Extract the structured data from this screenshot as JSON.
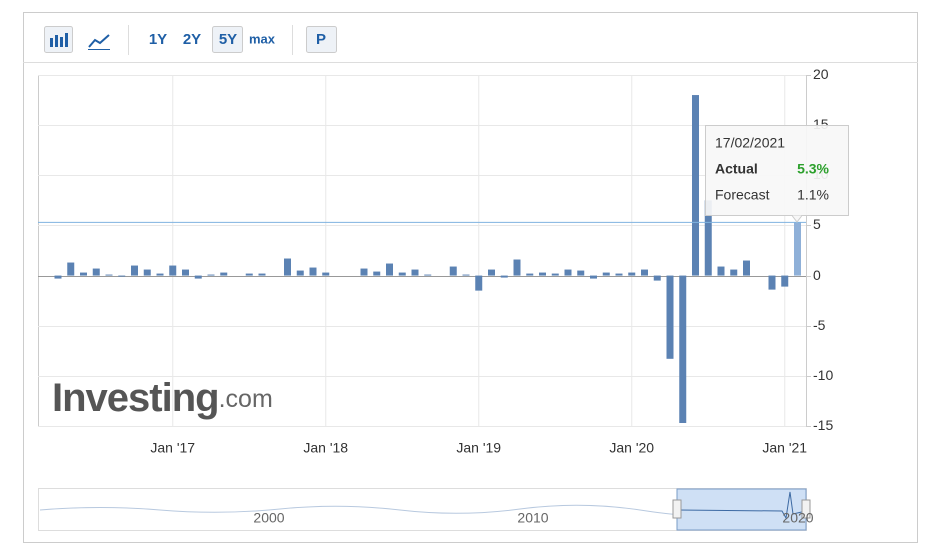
{
  "toolbar": {
    "ranges": [
      "1Y",
      "2Y",
      "5Y",
      "max"
    ],
    "selected_range": 2,
    "print": "P"
  },
  "chart_data": {
    "type": "bar",
    "categories": [
      null,
      null,
      null,
      null,
      null,
      null,
      null,
      null,
      null,
      "Jan '17",
      null,
      null,
      null,
      null,
      null,
      null,
      null,
      null,
      null,
      null,
      null,
      "Jan '18",
      null,
      null,
      null,
      null,
      null,
      null,
      null,
      null,
      null,
      null,
      null,
      "Jan '19",
      null,
      null,
      null,
      null,
      null,
      null,
      null,
      null,
      null,
      null,
      null,
      "Jan '20",
      null,
      null,
      null,
      null,
      null,
      null,
      null,
      null,
      null,
      null,
      null,
      "Jan '21",
      null
    ],
    "values": [
      -0.3,
      1.3,
      0.3,
      0.7,
      0.1,
      -0.1,
      1.0,
      0.6,
      0.2,
      1.0,
      0.6,
      -0.3,
      0.1,
      0.3,
      0.0,
      0.2,
      0.2,
      0.0,
      1.7,
      0.5,
      0.8,
      0.3,
      0.0,
      0.0,
      0.7,
      0.4,
      1.2,
      0.3,
      0.6,
      0.1,
      0.0,
      0.9,
      0.1,
      -1.5,
      0.6,
      -0.2,
      1.6,
      0.2,
      0.3,
      0.2,
      0.6,
      0.5,
      -0.3,
      0.3,
      0.2,
      0.3,
      0.6,
      -0.5,
      -8.3,
      -14.7,
      18.0,
      7.5,
      0.9,
      0.6,
      1.5,
      0.0,
      -1.4,
      -1.1,
      5.3
    ],
    "color": "#5b82b3",
    "hover_color": "#8fb0d8",
    "ylim": [
      -15,
      20
    ],
    "yticks": [
      -15,
      -10,
      -5,
      0,
      5,
      10,
      15,
      20
    ],
    "grid": true
  },
  "tooltip": {
    "date": "17/02/2021",
    "rows": [
      {
        "label": "Actual",
        "value": "5.3%"
      },
      {
        "label": "Forecast",
        "value": "1.1%"
      }
    ]
  },
  "navigator": {
    "labels": [
      "2000",
      "2010",
      "2020"
    ]
  },
  "watermark": {
    "brand": "Investing",
    "suffix": ".com"
  }
}
